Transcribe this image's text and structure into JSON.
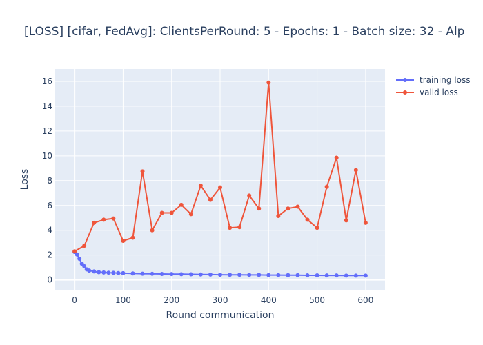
{
  "chart_data": {
    "type": "line",
    "title": "[LOSS] [cifar, FedAvg]: ClientsPerRound: 5 - Epochs: 1 - Batch size: 32 - Alp",
    "xlabel": "Round communication",
    "ylabel": "Loss",
    "xlim": [
      -40,
      640
    ],
    "ylim": [
      -0.8,
      17
    ],
    "x_ticks": [
      0,
      100,
      200,
      300,
      400,
      500,
      600
    ],
    "y_ticks": [
      0,
      2,
      4,
      6,
      8,
      10,
      12,
      14,
      16
    ],
    "grid": true,
    "legend_position": "top-right",
    "series": [
      {
        "name": "training loss",
        "color": "#636efa",
        "x": [
          0,
          5,
          10,
          15,
          20,
          25,
          30,
          40,
          50,
          60,
          70,
          80,
          90,
          100,
          120,
          140,
          160,
          180,
          200,
          220,
          240,
          260,
          280,
          300,
          320,
          340,
          360,
          380,
          400,
          420,
          440,
          460,
          480,
          500,
          520,
          540,
          560,
          580,
          600
        ],
        "y": [
          2.25,
          2.05,
          1.7,
          1.3,
          1.1,
          0.85,
          0.75,
          0.68,
          0.62,
          0.6,
          0.58,
          0.57,
          0.55,
          0.54,
          0.52,
          0.5,
          0.49,
          0.48,
          0.47,
          0.46,
          0.45,
          0.44,
          0.43,
          0.42,
          0.41,
          0.41,
          0.4,
          0.4,
          0.39,
          0.39,
          0.38,
          0.38,
          0.37,
          0.37,
          0.36,
          0.36,
          0.35,
          0.35,
          0.35
        ]
      },
      {
        "name": "valid loss",
        "color": "#ef553b",
        "x": [
          0,
          20,
          40,
          60,
          80,
          100,
          120,
          140,
          160,
          180,
          200,
          220,
          240,
          260,
          280,
          300,
          320,
          340,
          360,
          380,
          400,
          420,
          440,
          460,
          480,
          500,
          520,
          540,
          560,
          580,
          600
        ],
        "y": [
          2.3,
          2.75,
          4.6,
          4.85,
          4.95,
          3.15,
          3.4,
          8.75,
          4.0,
          5.4,
          5.4,
          6.05,
          5.3,
          7.6,
          6.45,
          7.45,
          4.2,
          4.25,
          6.8,
          5.75,
          15.9,
          5.15,
          5.75,
          5.9,
          4.85,
          4.2,
          7.5,
          9.85,
          4.8,
          8.85,
          4.6
        ]
      }
    ]
  }
}
